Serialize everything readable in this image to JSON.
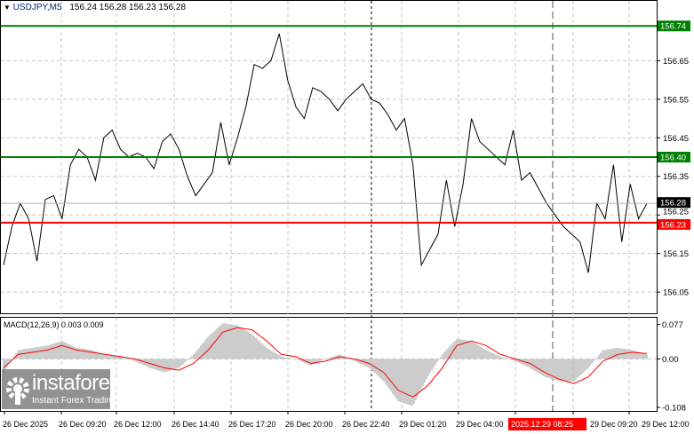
{
  "header": {
    "symbol": "USDJPY,M5",
    "ohlc": "156.24 156.28 156.23 156.28"
  },
  "price_axis": {
    "ticks": [
      "156.65",
      "156.55",
      "156.45",
      "156.35",
      "156.25",
      "156.15",
      "156.05"
    ],
    "tick_values": [
      156.65,
      156.55,
      156.45,
      156.35,
      156.25,
      156.15,
      156.05
    ],
    "range": [
      155.995,
      156.805
    ]
  },
  "levels": [
    {
      "label": "156.74",
      "value": 156.74,
      "color": "#008000"
    },
    {
      "label": "156.40",
      "value": 156.4,
      "color": "#008000"
    },
    {
      "label": "156.23",
      "value": 156.23,
      "color": "#ff0000"
    }
  ],
  "current_price": {
    "label": "156.28",
    "value": 156.28
  },
  "macd": {
    "title": "MACD(12,26,9) 0.003 0.009",
    "ticks": [
      "0.077",
      "0.00",
      "-0.108"
    ],
    "tick_values": [
      0.077,
      0.0,
      -0.108
    ],
    "range": [
      -0.116,
      0.092
    ],
    "signal_color": "#ff0000",
    "hist_color": "#c0c0c0"
  },
  "time_axis": {
    "labels": [
      "26 Dec 2025",
      "26 Dec 09:20",
      "26 Dec 12:00",
      "26 Dec 14:40",
      "26 Dec 17:20",
      "26 Dec 20:00",
      "26 Dec 22:40",
      "29 Dec 01:20",
      "29 Dec 04:00",
      "29 Dec 06:40",
      "29 Dec 09:20",
      "29 Dec 12:00"
    ],
    "highlight": "2025.12.29 08:25"
  },
  "chart_data": {
    "type": "line",
    "symbol": "USDJPY",
    "timeframe": "M5",
    "price": [
      156.12,
      156.22,
      156.28,
      156.24,
      156.13,
      156.29,
      156.3,
      156.24,
      156.38,
      156.42,
      156.4,
      156.34,
      156.45,
      156.47,
      156.42,
      156.4,
      156.41,
      156.4,
      156.37,
      156.44,
      156.46,
      156.42,
      156.35,
      156.3,
      156.33,
      156.36,
      156.49,
      156.38,
      156.45,
      156.53,
      156.64,
      156.63,
      156.65,
      156.72,
      156.6,
      156.53,
      156.5,
      156.58,
      156.57,
      156.55,
      156.52,
      156.55,
      156.57,
      156.59,
      156.55,
      156.54,
      156.51,
      156.47,
      156.5,
      156.38,
      156.12,
      156.16,
      156.2,
      156.34,
      156.22,
      156.33,
      156.5,
      156.44,
      156.42,
      156.4,
      156.38,
      156.47,
      156.34,
      156.36,
      156.32,
      156.28,
      156.25,
      156.22,
      156.2,
      156.18,
      156.1,
      156.28,
      156.24,
      156.38,
      156.18,
      156.33,
      156.24,
      156.28
    ],
    "macd_signal": [
      -0.02,
      0.01,
      0.015,
      0.02,
      0.03,
      0.02,
      0.015,
      0.01,
      0.005,
      0.0,
      -0.01,
      -0.02,
      -0.025,
      -0.01,
      0.02,
      0.06,
      0.07,
      0.065,
      0.04,
      0.01,
      0.005,
      -0.01,
      -0.005,
      0.005,
      0.0,
      -0.01,
      -0.03,
      -0.07,
      -0.085,
      -0.06,
      -0.02,
      0.03,
      0.04,
      0.03,
      0.01,
      0.0,
      -0.01,
      -0.03,
      -0.045,
      -0.055,
      -0.04,
      -0.005,
      0.01,
      0.015,
      0.012
    ],
    "macd_hist": [
      -0.03,
      0.02,
      0.025,
      0.03,
      0.04,
      0.025,
      0.02,
      0.01,
      0.005,
      -0.005,
      -0.02,
      -0.03,
      -0.02,
      0.01,
      0.05,
      0.08,
      0.075,
      0.055,
      0.025,
      0.005,
      0.0,
      -0.015,
      0.0,
      0.01,
      -0.005,
      -0.02,
      -0.05,
      -0.095,
      -0.105,
      -0.04,
      0.01,
      0.045,
      0.04,
      0.02,
      0.005,
      -0.005,
      -0.02,
      -0.04,
      -0.05,
      -0.05,
      -0.02,
      0.02,
      0.025,
      0.02,
      0.01
    ]
  },
  "watermark": {
    "brand": "instaforex",
    "tagline": "Instant Forex Trading"
  }
}
